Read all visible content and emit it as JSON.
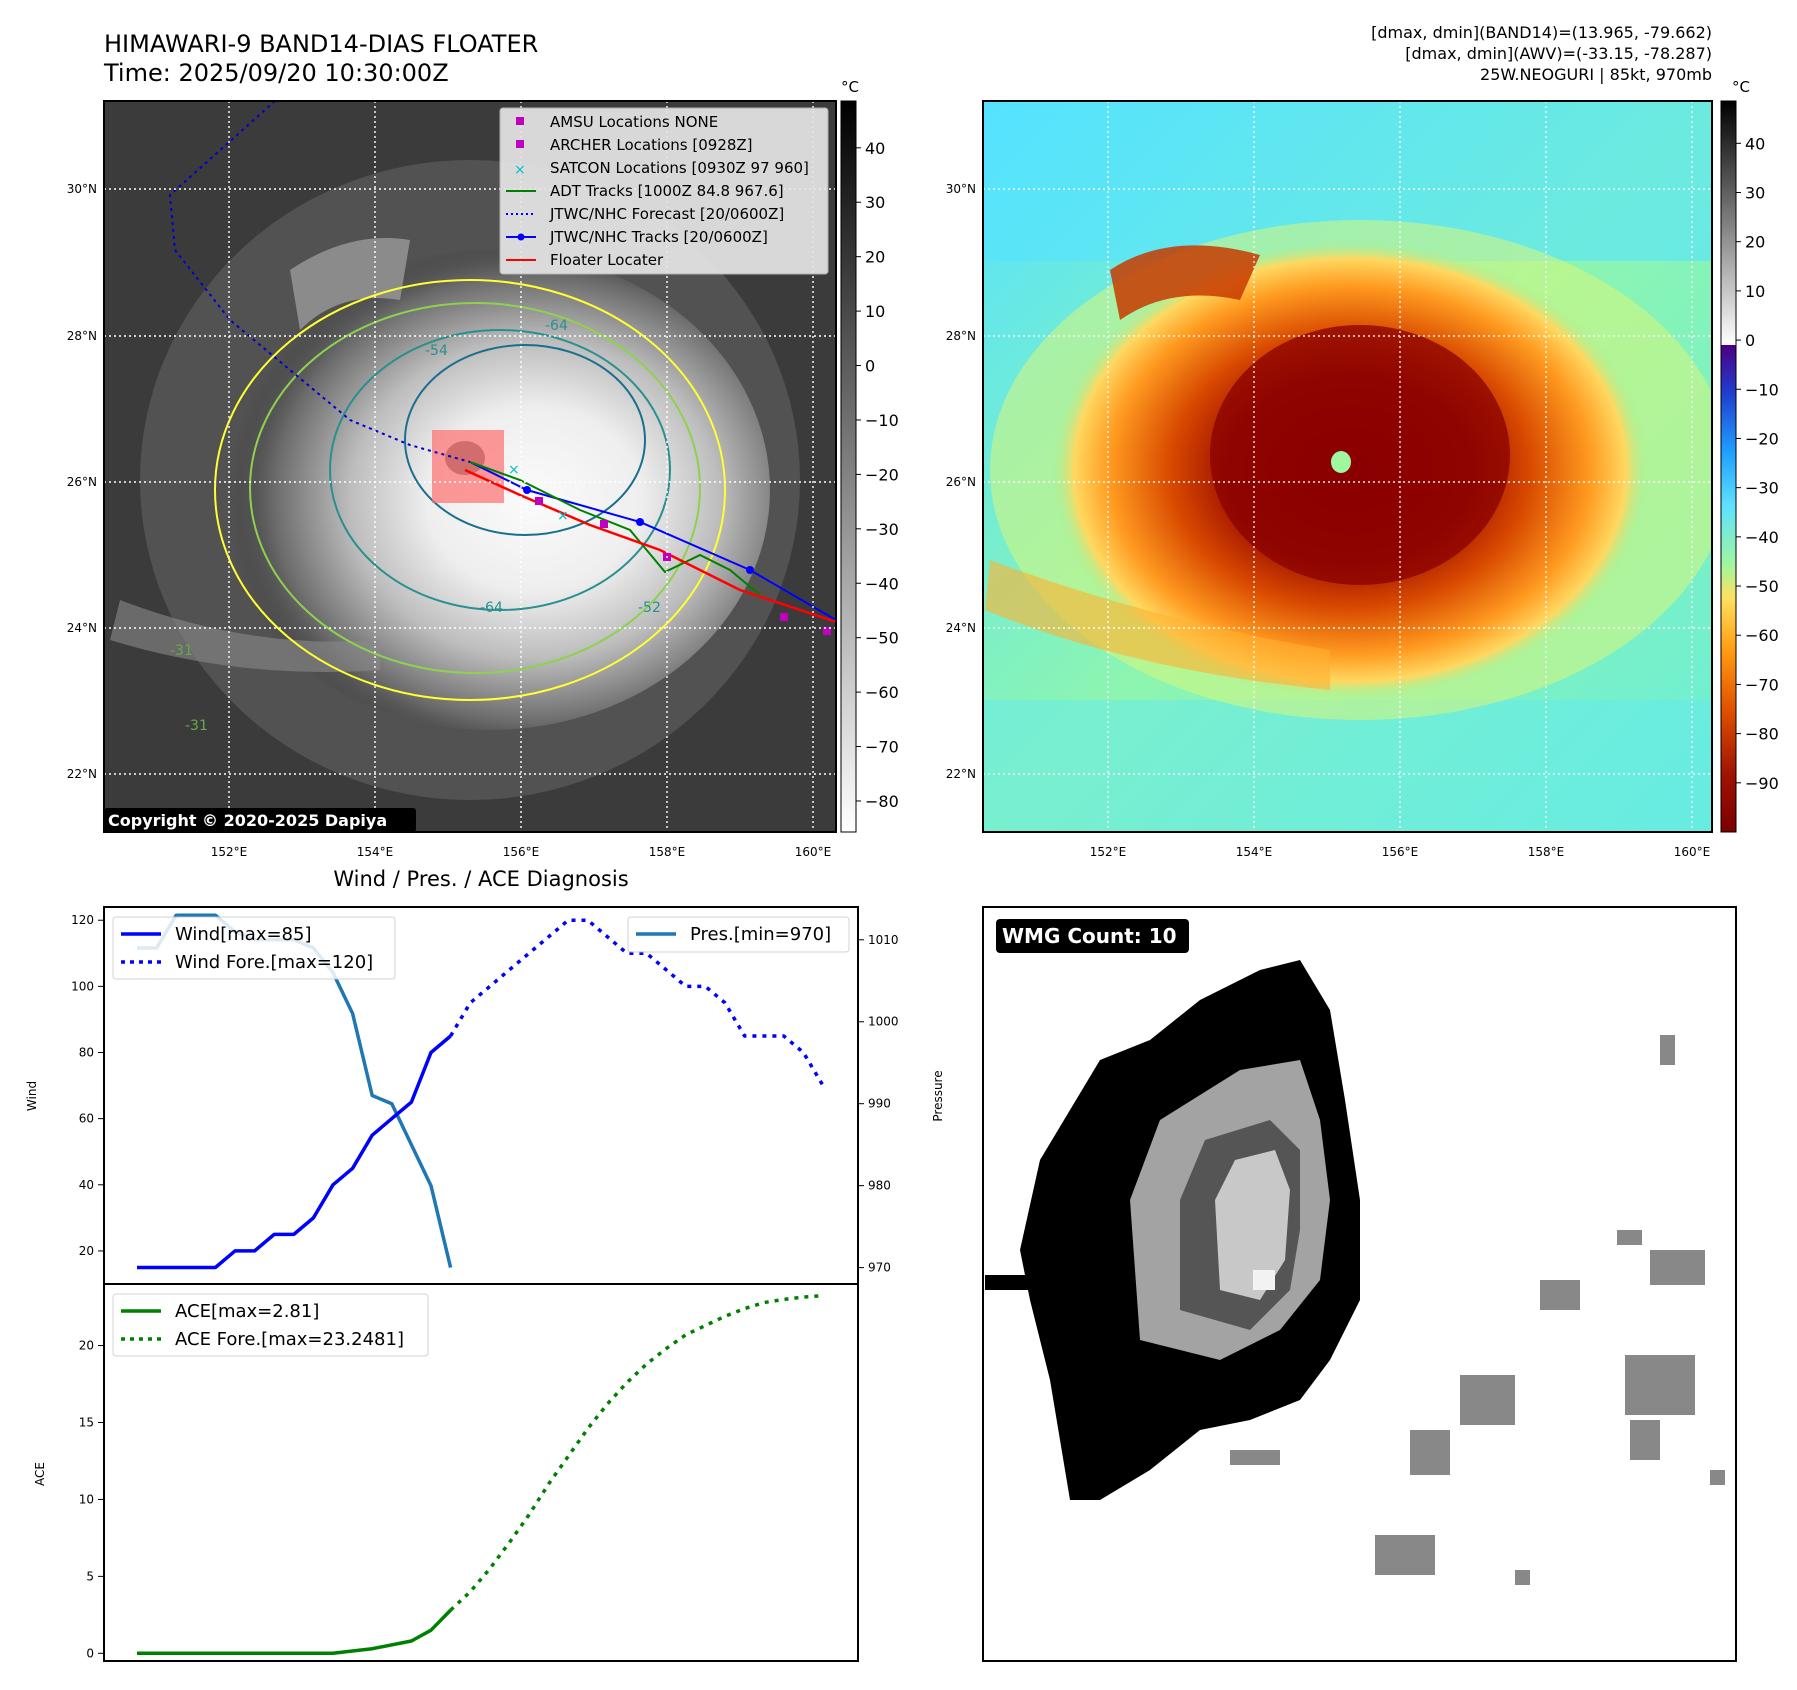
{
  "header": {
    "title_line1": "HIMAWARI-9 BAND14-DIAS FLOATER",
    "title_line2": "Time: 2025/09/20 10:30:00Z",
    "info_line1": "[dmax, dmin](BAND14)=(13.965, -79.662)",
    "info_line2": "[dmax, dmin](AWV)=(-33.15, -78.287)",
    "info_line3": "25W.NEOGURI | 85kt, 970mb"
  },
  "copyright": "Copyright © 2020-2025 Dapiya",
  "map": {
    "lat_labels": [
      "30°N",
      "28°N",
      "26°N",
      "24°N",
      "22°N"
    ],
    "lon_labels": [
      "152°E",
      "154°E",
      "156°E",
      "158°E",
      "160°E"
    ],
    "contour_labels": [
      "-64",
      "-54",
      "-64",
      "-31",
      "-31",
      "-52"
    ],
    "colorbar_unit": "°C",
    "colorbar_gray_ticks": [
      "40",
      "30",
      "20",
      "10",
      "0",
      "−10",
      "−20",
      "−30",
      "−40",
      "−50",
      "−60",
      "−70",
      "−80"
    ],
    "colorbar_awv_ticks": [
      "40",
      "30",
      "20",
      "10",
      "0",
      "−10",
      "−20",
      "−30",
      "−40",
      "−50",
      "−60",
      "−70",
      "−80",
      "−90"
    ],
    "legend": [
      {
        "label": "AMSU Locations NONE",
        "color": "#c000c0"
      },
      {
        "label": "ARCHER Locations [0928Z]",
        "color": "#c000c0"
      },
      {
        "label": "SATCON Locations [0930Z 97 960]",
        "color": "#00bfbf"
      },
      {
        "label": "ADT Tracks [1000Z 84.8 967.6]",
        "color": "#008000"
      },
      {
        "label": "JTWC/NHC Forecast [20/0600Z]",
        "color": "#0000ff"
      },
      {
        "label": "JTWC/NHC Tracks [20/0600Z]",
        "color": "#0000ff"
      },
      {
        "label": "Floater Locater",
        "color": "#ff0000"
      }
    ]
  },
  "diagnosis": {
    "title": "Wind / Pres. / ACE Diagnosis",
    "wind_axis_label": "Wind",
    "pres_axis_label": "Pressure",
    "ace_axis_label": "ACE",
    "legend_wind": "Wind[max=85]",
    "legend_wind_fore": "Wind Fore.[max=120]",
    "legend_pres": "Pres.[min=970]",
    "legend_ace": "ACE[max=2.81]",
    "legend_ace_fore": "ACE Fore.[max=23.2481]",
    "wind_ticks": [
      "20",
      "40",
      "60",
      "80",
      "100",
      "120"
    ],
    "pres_ticks": [
      "970",
      "980",
      "990",
      "1000",
      "1010"
    ],
    "ace_ticks": [
      "0",
      "5",
      "10",
      "15",
      "20"
    ]
  },
  "wmg": {
    "label": "WMG Count: 10"
  },
  "colors": {
    "wind": "#0000ff",
    "pres": "#1f77b4",
    "ace": "#008000"
  },
  "chart_data": [
    {
      "type": "line",
      "name": "wind",
      "ylabel": "Wind",
      "ylim": [
        10,
        124
      ],
      "x": [
        0,
        1,
        2,
        3,
        4,
        5,
        6,
        7,
        8,
        9,
        10,
        11,
        12,
        13,
        14,
        15,
        16
      ],
      "series": [
        {
          "name": "Wind[max=85]",
          "x": [
            0,
            1,
            2,
            3,
            4,
            5,
            6,
            7,
            8,
            9,
            10,
            11,
            12,
            13,
            14,
            15,
            16
          ],
          "values": [
            15,
            15,
            15,
            15,
            15,
            20,
            20,
            25,
            25,
            30,
            40,
            45,
            55,
            60,
            65,
            80,
            85
          ]
        },
        {
          "name": "Wind Fore.[max=120]",
          "x": [
            16,
            17,
            18,
            19,
            20,
            21,
            22,
            23,
            24,
            25,
            26,
            27,
            28,
            29,
            30,
            31,
            32,
            33,
            34,
            35
          ],
          "values": [
            85,
            95,
            100,
            105,
            110,
            115,
            120,
            120,
            115,
            110,
            110,
            105,
            100,
            100,
            95,
            85,
            85,
            85,
            80,
            70
          ]
        }
      ]
    },
    {
      "type": "line",
      "name": "pressure",
      "ylabel": "Pressure",
      "ylim": [
        968,
        1014
      ],
      "series": [
        {
          "name": "Pres.[min=970]",
          "x": [
            0,
            1,
            2,
            3,
            4,
            5,
            6,
            7,
            8,
            9,
            10,
            11,
            12,
            13,
            14,
            15,
            16
          ],
          "values": [
            1009,
            1009,
            1013,
            1013,
            1013,
            1011,
            1010,
            1010,
            1010,
            1009,
            1006,
            1001,
            991,
            990,
            985,
            980,
            970
          ]
        }
      ]
    },
    {
      "type": "line",
      "name": "ace",
      "ylabel": "ACE",
      "ylim": [
        -0.5,
        24
      ],
      "series": [
        {
          "name": "ACE[max=2.81]",
          "x": [
            0,
            2,
            4,
            6,
            8,
            10,
            12,
            14,
            15,
            16
          ],
          "values": [
            0,
            0,
            0,
            0,
            0,
            0,
            0.3,
            0.8,
            1.5,
            2.81
          ]
        },
        {
          "name": "ACE Fore.[max=23.2481]",
          "x": [
            16,
            17,
            18,
            19,
            20,
            21,
            22,
            23,
            24,
            25,
            26,
            27,
            28,
            29,
            30,
            31,
            32,
            33,
            34,
            35
          ],
          "values": [
            2.81,
            4,
            5.5,
            7.2,
            9,
            11,
            12.8,
            14.6,
            16.2,
            17.6,
            18.8,
            19.8,
            20.7,
            21.3,
            21.9,
            22.4,
            22.8,
            23.0,
            23.15,
            23.2481
          ]
        }
      ]
    }
  ]
}
